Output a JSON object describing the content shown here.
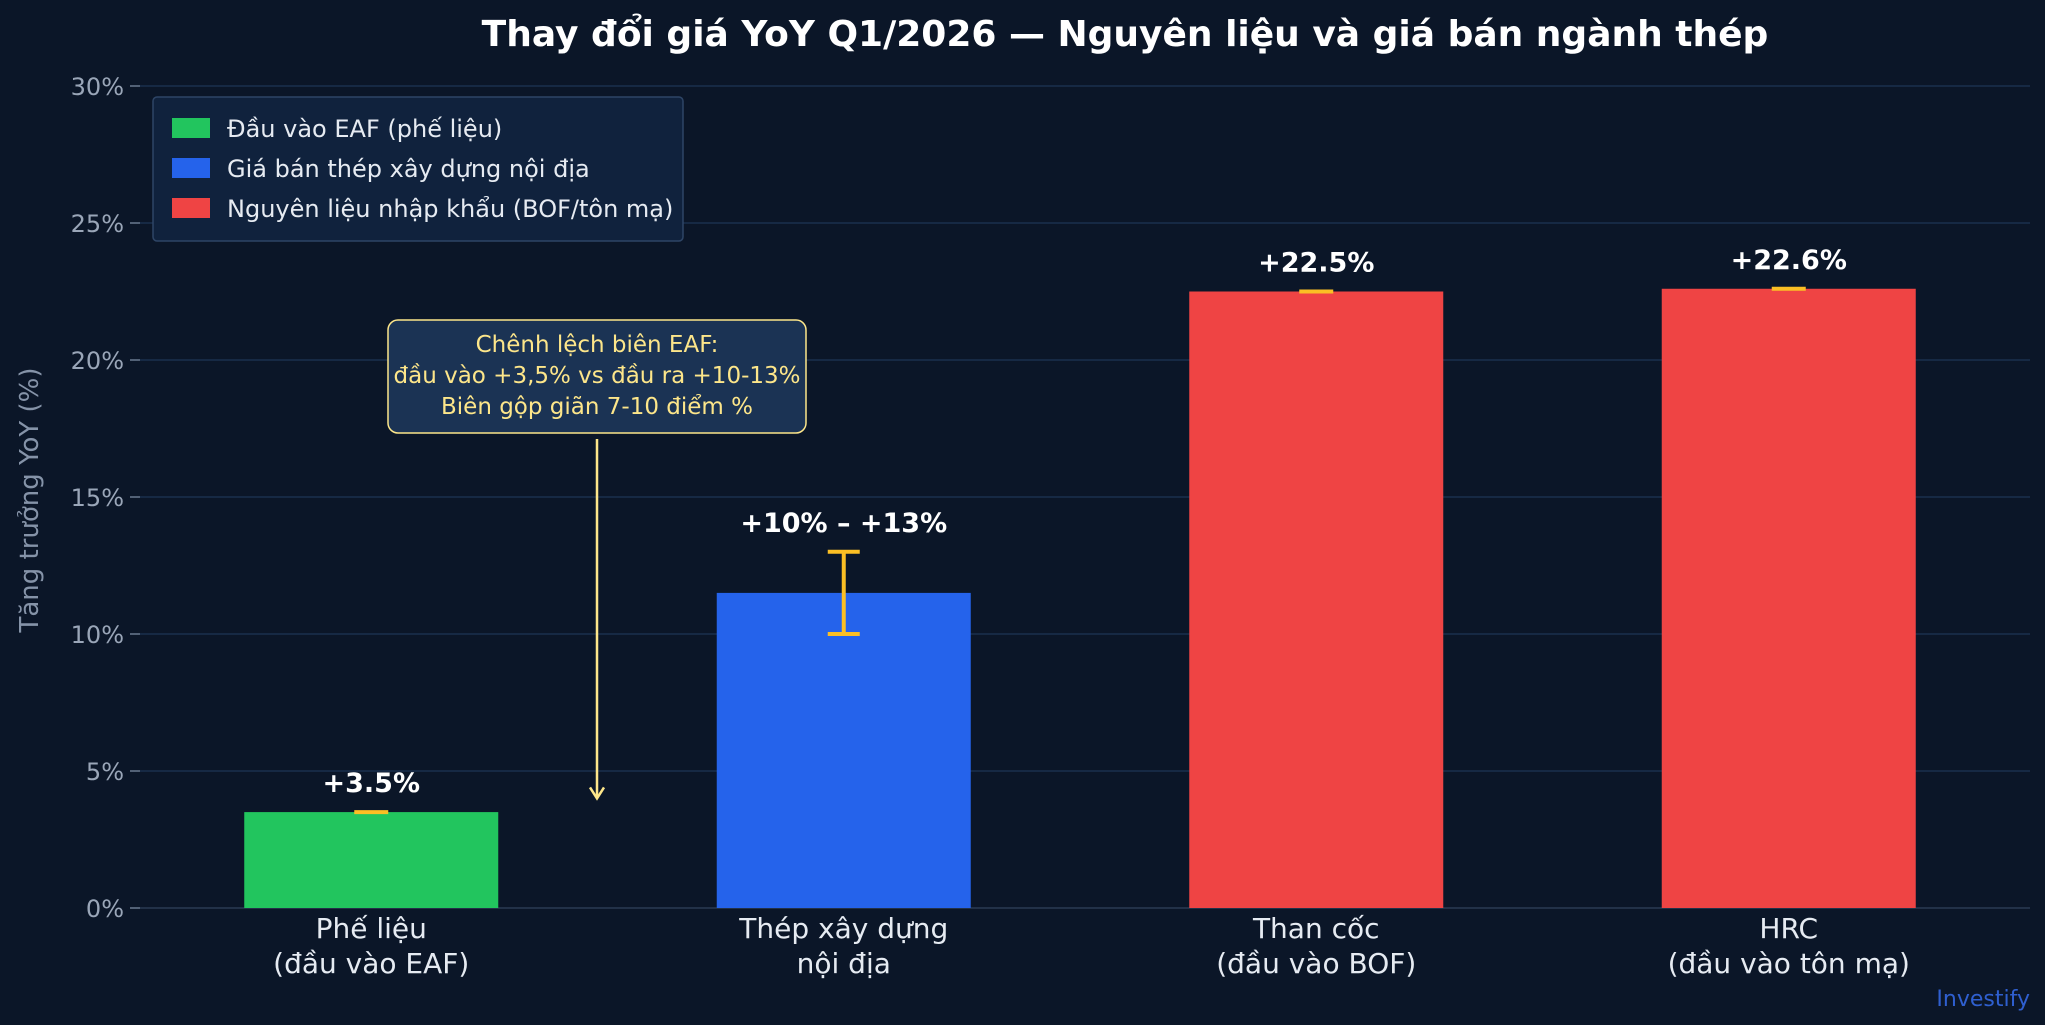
{
  "chart_data": {
    "type": "bar",
    "title": "Thay đổi giá YoY Q1/2026 — Nguyên liệu và giá bán ngành thép",
    "ylabel": "Tăng trưởng YoY (%)",
    "xlabel": "",
    "ylim": [
      0,
      30
    ],
    "yticks": [
      0,
      5,
      10,
      15,
      20,
      25,
      30
    ],
    "ytick_labels": [
      "0%",
      "5%",
      "10%",
      "15%",
      "20%",
      "25%",
      "30%"
    ],
    "grid": "horizontal",
    "categories": [
      [
        "Phế liệu",
        "(đầu vào EAF)"
      ],
      [
        "Thép xây dựng",
        "nội địa"
      ],
      [
        "Than cốc",
        "(đầu vào BOF)"
      ],
      [
        "HRC",
        "(đầu vào tôn mạ)"
      ]
    ],
    "values": [
      3.5,
      11.5,
      22.5,
      22.6
    ],
    "ranges": [
      [
        3.5,
        3.5
      ],
      [
        10,
        13
      ],
      [
        22.5,
        22.5
      ],
      [
        22.6,
        22.6
      ]
    ],
    "value_labels": [
      "+3.5%",
      "+10% – +13%",
      "+22.5%",
      "+22.6%"
    ],
    "bar_groups": [
      0,
      1,
      2,
      2
    ],
    "legend": {
      "placement": "top-left",
      "entries": [
        {
          "label": "Đầu vào EAF (phế liệu)",
          "color": "#22c55e"
        },
        {
          "label": "Giá bán thép xây dựng nội địa",
          "color": "#2563eb"
        },
        {
          "label": "Nguyên liệu nhập khẩu (BOF/tôn mạ)",
          "color": "#ef4444"
        }
      ]
    },
    "annotation": {
      "lines": [
        "Chênh lệch biên EAF:",
        "đầu vào +3,5% vs đầu ra +10-13%",
        "Biên gộp giãn 7-10 điểm %"
      ],
      "points_to_value": 4
    },
    "errorbar_color": "#fbbf24"
  },
  "watermark": "Investify",
  "colors": {
    "background": "#0b1628",
    "grid": "#1e3556",
    "axis": "#2a3a52"
  }
}
